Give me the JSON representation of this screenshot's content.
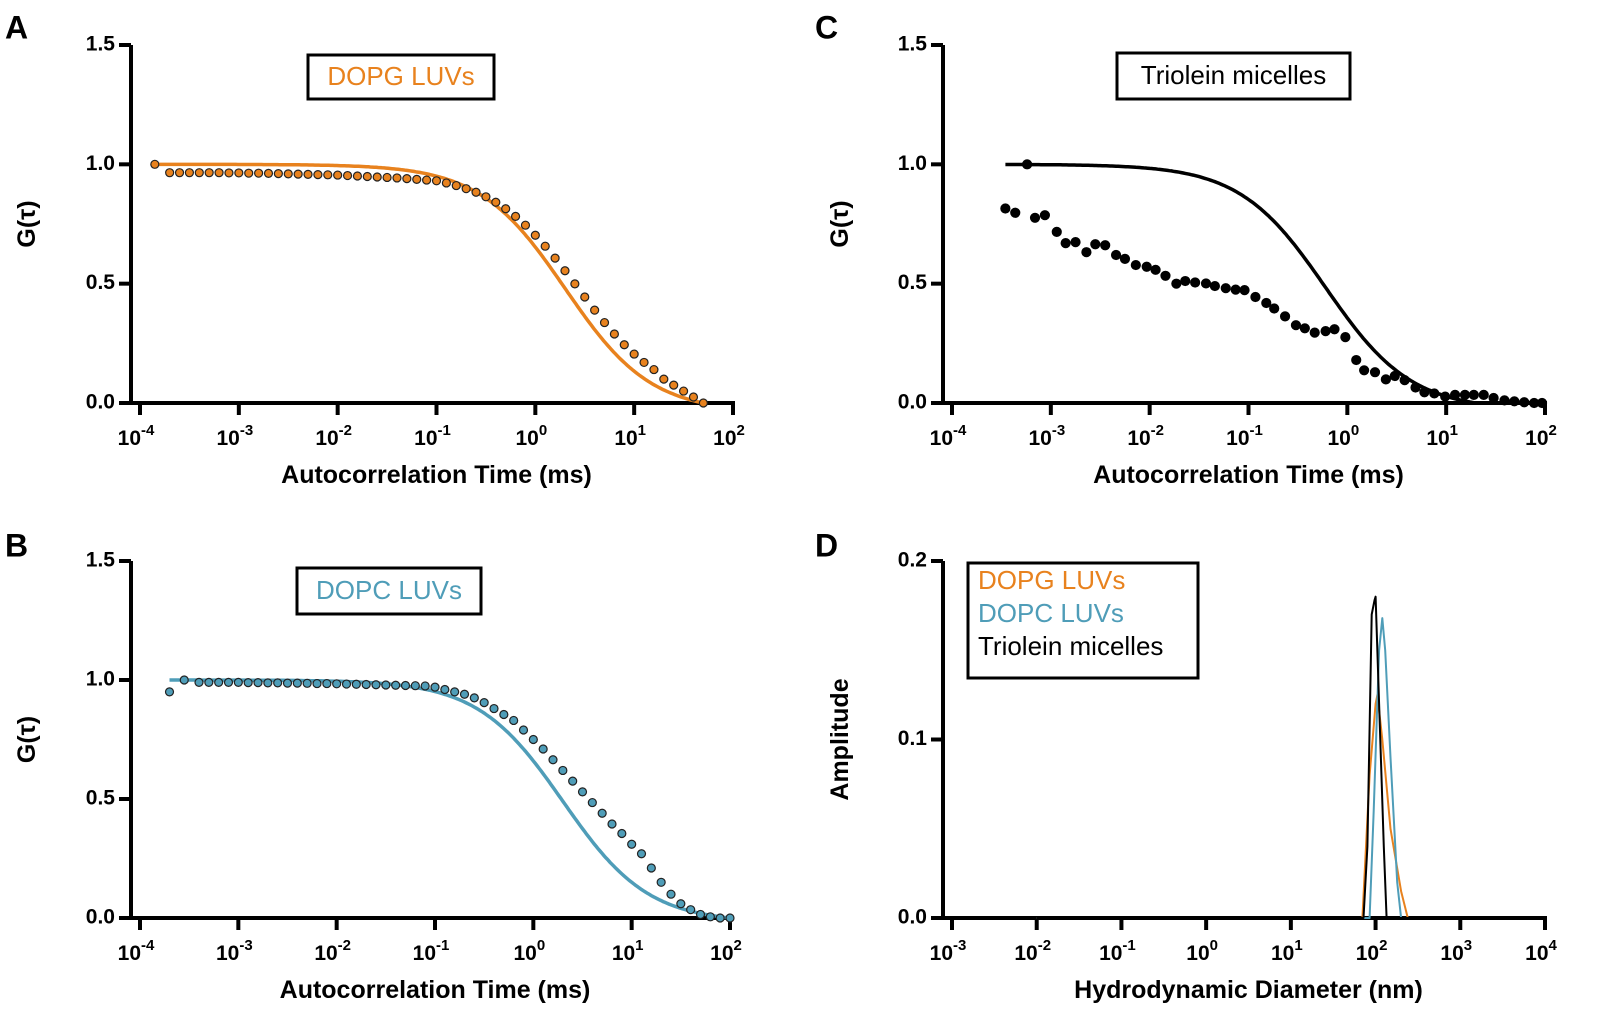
{
  "colors": {
    "orange": "#E8821E",
    "blue": "#4F9DB8",
    "black": "#000000"
  },
  "chart_data": [
    {
      "panel": "A",
      "type": "scatter",
      "title": "DOPG LUVs",
      "title_color": "orange",
      "xlabel": "Autocorrelation Time (ms)",
      "ylabel": "G(τ)",
      "xscale": "log",
      "xlim_log10": [
        -4,
        2
      ],
      "ylim": [
        0,
        1.5
      ],
      "x_ticks": [
        {
          "b": "10",
          "e": "-4"
        },
        {
          "b": "10",
          "e": "-3"
        },
        {
          "b": "10",
          "e": "-2"
        },
        {
          "b": "10",
          "e": "-1"
        },
        {
          "b": "10",
          "e": "0"
        },
        {
          "b": "10",
          "e": "1"
        },
        {
          "b": "10",
          "e": "2"
        }
      ],
      "y_ticks": [
        "0.0",
        "0.5",
        "1.0",
        "1.5"
      ],
      "points_color": "orange",
      "points_log10_tau": [
        -3.85,
        -3.7,
        -3.6,
        -3.5,
        -3.4,
        -3.3,
        -3.2,
        -3.1,
        -3.0,
        -2.9,
        -2.8,
        -2.7,
        -2.6,
        -2.5,
        -2.4,
        -2.3,
        -2.2,
        -2.1,
        -2.0,
        -1.9,
        -1.8,
        -1.7,
        -1.6,
        -1.5,
        -1.4,
        -1.3,
        -1.2,
        -1.1,
        -1.0,
        -0.9,
        -0.8,
        -0.7,
        -0.6,
        -0.5,
        -0.4,
        -0.3,
        -0.2,
        -0.1,
        0.0,
        0.1,
        0.2,
        0.3,
        0.4,
        0.5,
        0.6,
        0.7,
        0.8,
        0.9,
        1.0,
        1.1,
        1.2,
        1.3,
        1.4,
        1.5,
        1.6,
        1.7
      ],
      "points_G": [
        1.0,
        0.965,
        0.965,
        0.965,
        0.965,
        0.965,
        0.965,
        0.964,
        0.964,
        0.963,
        0.963,
        0.962,
        0.961,
        0.96,
        0.959,
        0.958,
        0.957,
        0.956,
        0.955,
        0.953,
        0.951,
        0.949,
        0.947,
        0.945,
        0.943,
        0.94,
        0.937,
        0.934,
        0.931,
        0.922,
        0.911,
        0.898,
        0.883,
        0.864,
        0.841,
        0.814,
        0.782,
        0.745,
        0.703,
        0.657,
        0.607,
        0.554,
        0.499,
        0.444,
        0.389,
        0.337,
        0.289,
        0.244,
        0.205,
        0.17,
        0.14,
        0.1,
        0.075,
        0.05,
        0.025,
        0.0
      ],
      "fit": {
        "model": "A/(1+tau/tau_D)+offset",
        "A": 1.04,
        "tau_D_ms": 2.0,
        "offset": -0.04,
        "log10_range": [
          -3.85,
          1.7
        ],
        "color": "orange"
      }
    },
    {
      "panel": "B",
      "type": "scatter",
      "title": "DOPC LUVs",
      "title_color": "blue",
      "xlabel": "Autocorrelation Time (ms)",
      "ylabel": "G(τ)",
      "xscale": "log",
      "xlim_log10": [
        -4,
        2
      ],
      "ylim": [
        0,
        1.5
      ],
      "x_ticks": [
        {
          "b": "10",
          "e": "-4"
        },
        {
          "b": "10",
          "e": "-3"
        },
        {
          "b": "10",
          "e": "-2"
        },
        {
          "b": "10",
          "e": "-1"
        },
        {
          "b": "10",
          "e": "0"
        },
        {
          "b": "10",
          "e": "1"
        },
        {
          "b": "10",
          "e": "2"
        }
      ],
      "y_ticks": [
        "0.0",
        "0.5",
        "1.0",
        "1.5"
      ],
      "points_color": "blue",
      "points_log10_tau": [
        -3.7,
        -3.55,
        -3.4,
        -3.3,
        -3.2,
        -3.1,
        -3.0,
        -2.9,
        -2.8,
        -2.7,
        -2.6,
        -2.5,
        -2.4,
        -2.3,
        -2.2,
        -2.1,
        -2.0,
        -1.9,
        -1.8,
        -1.7,
        -1.6,
        -1.5,
        -1.4,
        -1.3,
        -1.2,
        -1.1,
        -1.0,
        -0.9,
        -0.8,
        -0.7,
        -0.6,
        -0.5,
        -0.4,
        -0.3,
        -0.2,
        -0.1,
        0.0,
        0.1,
        0.2,
        0.3,
        0.4,
        0.5,
        0.6,
        0.7,
        0.8,
        0.9,
        1.0,
        1.1,
        1.2,
        1.3,
        1.4,
        1.5,
        1.6,
        1.7,
        1.8,
        1.9,
        2.0
      ],
      "points_G": [
        0.95,
        1.0,
        0.99,
        0.99,
        0.99,
        0.99,
        0.99,
        0.989,
        0.989,
        0.988,
        0.988,
        0.987,
        0.987,
        0.986,
        0.985,
        0.985,
        0.984,
        0.983,
        0.982,
        0.981,
        0.98,
        0.979,
        0.978,
        0.977,
        0.976,
        0.975,
        0.97,
        0.96,
        0.95,
        0.94,
        0.925,
        0.905,
        0.88,
        0.855,
        0.83,
        0.79,
        0.75,
        0.71,
        0.665,
        0.62,
        0.575,
        0.53,
        0.485,
        0.44,
        0.395,
        0.355,
        0.31,
        0.27,
        0.21,
        0.15,
        0.1,
        0.06,
        0.035,
        0.015,
        0.005,
        0.0,
        0.0
      ],
      "fit": {
        "model": "A/(1+tau/tau_D)+offset",
        "A": 1.02,
        "tau_D_ms": 2.0,
        "offset": -0.02,
        "log10_range": [
          -3.7,
          2.0
        ],
        "color": "blue"
      }
    },
    {
      "panel": "C",
      "type": "scatter",
      "title": "Triolein micelles",
      "title_color": "black",
      "xlabel": "Autocorrelation Time (ms)",
      "ylabel": "G(τ)",
      "xscale": "log",
      "xlim_log10": [
        -4,
        2
      ],
      "ylim": [
        0,
        1.5
      ],
      "x_ticks": [
        {
          "b": "10",
          "e": "-4"
        },
        {
          "b": "10",
          "e": "-3"
        },
        {
          "b": "10",
          "e": "-2"
        },
        {
          "b": "10",
          "e": "-1"
        },
        {
          "b": "10",
          "e": "0"
        },
        {
          "b": "10",
          "e": "1"
        },
        {
          "b": "10",
          "e": "2"
        }
      ],
      "y_ticks": [
        "0.0",
        "0.5",
        "1.0",
        "1.5"
      ],
      "points_color": "black",
      "points_log10_tau": [
        -3.46,
        -3.36,
        -3.24,
        -3.16,
        -3.06,
        -2.94,
        -2.85,
        -2.75,
        -2.64,
        -2.55,
        -2.45,
        -2.34,
        -2.25,
        -2.14,
        -2.03,
        -1.94,
        -1.84,
        -1.73,
        -1.64,
        -1.54,
        -1.43,
        -1.34,
        -1.23,
        -1.13,
        -1.04,
        -0.93,
        -0.82,
        -0.74,
        -0.63,
        -0.52,
        -0.43,
        -0.33,
        -0.22,
        -0.13,
        -0.02,
        0.09,
        0.17,
        0.28,
        0.39,
        0.48,
        0.58,
        0.69,
        0.78,
        0.88,
        0.99,
        1.09,
        1.19,
        1.28,
        1.38,
        1.48,
        1.59,
        1.69,
        1.79,
        1.89,
        1.97
      ],
      "points_G": [
        0.815,
        0.797,
        1.0,
        0.776,
        0.787,
        0.717,
        0.67,
        0.674,
        0.632,
        0.665,
        0.661,
        0.62,
        0.604,
        0.578,
        0.571,
        0.558,
        0.533,
        0.5,
        0.511,
        0.505,
        0.501,
        0.49,
        0.481,
        0.475,
        0.473,
        0.444,
        0.419,
        0.396,
        0.363,
        0.326,
        0.313,
        0.295,
        0.301,
        0.309,
        0.276,
        0.18,
        0.137,
        0.129,
        0.099,
        0.113,
        0.096,
        0.065,
        0.045,
        0.04,
        0.027,
        0.034,
        0.034,
        0.034,
        0.034,
        0.021,
        0.011,
        0.007,
        0.003,
        0.0,
        0.0
      ],
      "fit": {
        "model": "A/(1+tau/tau_D)+offset",
        "A": 1.03,
        "tau_D_ms": 0.6,
        "offset": -0.03,
        "log10_range": [
          -3.46,
          2.0
        ],
        "color": "black"
      }
    },
    {
      "panel": "D",
      "type": "line",
      "xlabel": "Hydrodynamic Diameter (nm)",
      "ylabel": "Amplitude",
      "xscale": "log",
      "xlim_log10": [
        -3,
        4
      ],
      "ylim": [
        0,
        0.2
      ],
      "x_ticks": [
        {
          "b": "10",
          "e": "-3"
        },
        {
          "b": "10",
          "e": "-2"
        },
        {
          "b": "10",
          "e": "-1"
        },
        {
          "b": "10",
          "e": "0"
        },
        {
          "b": "10",
          "e": "1"
        },
        {
          "b": "10",
          "e": "2"
        },
        {
          "b": "10",
          "e": "3"
        },
        {
          "b": "10",
          "e": "4"
        }
      ],
      "y_ticks": [
        "0.0",
        "0.1",
        "0.2"
      ],
      "legend_position": "top-left",
      "series": [
        {
          "name": "DOPG LUVs",
          "color": "orange",
          "d_nm": [
            0.01,
            70,
            85,
            100,
            105,
            120,
            150,
            200,
            240,
            10000
          ],
          "amplitude": [
            0,
            0,
            0.08,
            0.12,
            0.125,
            0.1,
            0.05,
            0.015,
            0,
            0
          ]
        },
        {
          "name": "DOPC LUVs",
          "color": "blue",
          "d_nm": [
            0.01,
            85,
            95,
            110,
            120,
            130,
            150,
            180,
            200,
            10000
          ],
          "amplitude": [
            0,
            0,
            0.06,
            0.15,
            0.168,
            0.15,
            0.09,
            0.02,
            0,
            0
          ]
        },
        {
          "name": "Triolein micelles",
          "color": "black",
          "d_nm": [
            0.01,
            72,
            80,
            90,
            97,
            100,
            110,
            125,
            135,
            10000
          ],
          "amplitude": [
            0,
            0,
            0.04,
            0.17,
            0.178,
            0.18,
            0.12,
            0.04,
            0,
            0
          ]
        }
      ]
    }
  ]
}
